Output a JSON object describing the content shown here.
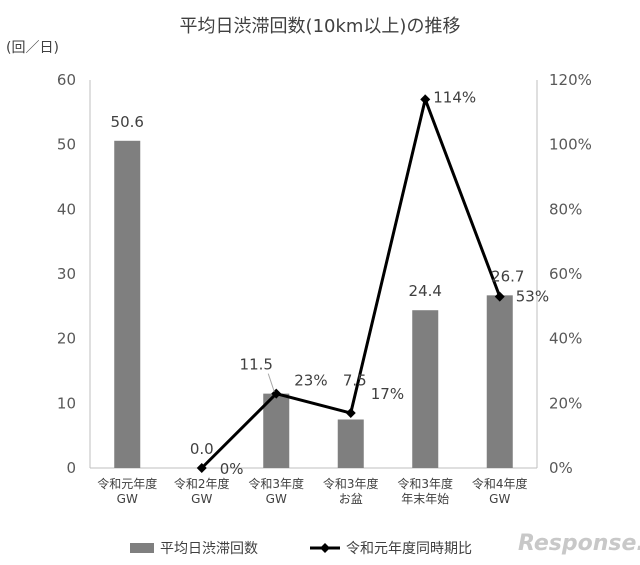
{
  "chart_data": {
    "type": "bar",
    "title": "平均日渋滞回数(10km以上)の推移",
    "ylabel": "(回／日)",
    "y2label": "",
    "ylim": [
      0,
      60
    ],
    "y2lim": [
      0,
      120
    ],
    "yticks": [
      "0",
      "10",
      "20",
      "30",
      "40",
      "50",
      "60"
    ],
    "y2ticks": [
      "0%",
      "20%",
      "40%",
      "60%",
      "80%",
      "100%",
      "120%"
    ],
    "grid": false,
    "legend_position": "bottom",
    "categories": [
      [
        "令和元年度",
        "GW"
      ],
      [
        "令和2年度",
        "GW"
      ],
      [
        "令和3年度",
        "GW"
      ],
      [
        "令和3年度",
        "お盆"
      ],
      [
        "令和3年度",
        "年末年始"
      ],
      [
        "令和4年度",
        "GW"
      ]
    ],
    "series": [
      {
        "name": "平均日渋滞回数",
        "type": "bar",
        "axis": "left",
        "values": [
          50.6,
          0.0,
          11.5,
          7.5,
          24.4,
          26.7
        ],
        "labels": [
          "50.6",
          "0.0",
          "11.5",
          "7.5",
          "24.4",
          "26.7"
        ],
        "color": "#7f7f7f"
      },
      {
        "name": "令和元年度同時期比",
        "type": "line",
        "axis": "right",
        "values": [
          null,
          0,
          23,
          17,
          114,
          53
        ],
        "labels": [
          "",
          "0%",
          "23%",
          "17%",
          "114%",
          "53%"
        ],
        "color": "#000000"
      }
    ]
  },
  "watermark": "Response."
}
